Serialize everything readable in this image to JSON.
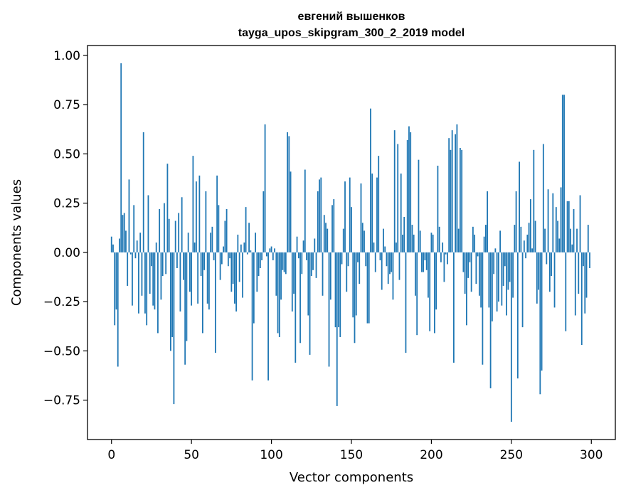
{
  "chart_data": {
    "type": "bar",
    "title_line1": "евгений вышенков",
    "title_line2": "tayga_upos_skipgram_300_2_2019 model",
    "xlabel": "Vector components",
    "ylabel": "Components values",
    "xlim": [
      -15,
      315
    ],
    "ylim": [
      -0.95,
      1.05
    ],
    "xticks": [
      0,
      50,
      100,
      150,
      200,
      250,
      300
    ],
    "yticks": [
      -0.75,
      -0.5,
      -0.25,
      0.0,
      0.25,
      0.5,
      0.75,
      1.0
    ],
    "xtick_labels": [
      "0",
      "50",
      "100",
      "150",
      "200",
      "250",
      "300"
    ],
    "ytick_labels": [
      "−0.75",
      "−0.50",
      "−0.25",
      "0.00",
      "0.25",
      "0.50",
      "0.75",
      "1.00"
    ],
    "bar_color": "#1f77b4",
    "grid": false,
    "values": [
      0.08,
      0.04,
      -0.37,
      -0.29,
      -0.58,
      0.07,
      0.96,
      0.19,
      0.2,
      0.11,
      -0.17,
      0.37,
      -0.01,
      -0.27,
      0.24,
      -0.03,
      0.06,
      -0.31,
      0.1,
      -0.22,
      0.61,
      -0.31,
      -0.37,
      0.29,
      -0.21,
      -0.07,
      -0.27,
      -0.29,
      0.05,
      -0.41,
      0.22,
      -0.24,
      -0.12,
      0.25,
      -0.11,
      0.45,
      0.17,
      -0.5,
      -0.43,
      -0.77,
      0.16,
      -0.08,
      0.2,
      -0.3,
      0.28,
      -0.14,
      -0.57,
      -0.45,
      0.1,
      -0.2,
      -0.27,
      0.49,
      0.05,
      0.36,
      -0.26,
      0.39,
      -0.12,
      -0.41,
      -0.09,
      0.31,
      -0.26,
      -0.29,
      0.1,
      0.13,
      -0.04,
      -0.51,
      0.39,
      0.24,
      -0.14,
      -0.06,
      0.03,
      0.16,
      0.22,
      -0.07,
      -0.03,
      -0.2,
      -0.16,
      -0.26,
      -0.3,
      0.09,
      -0.15,
      0.04,
      -0.23,
      0.05,
      0.23,
      -0.01,
      0.15,
      0.01,
      -0.65,
      -0.36,
      0.1,
      -0.2,
      -0.12,
      -0.08,
      -0.04,
      0.31,
      0.65,
      -0.02,
      -0.65,
      0.02,
      0.03,
      -0.04,
      0.02,
      -0.22,
      -0.41,
      -0.43,
      -0.24,
      -0.09,
      -0.1,
      -0.11,
      0.61,
      0.59,
      0.41,
      -0.3,
      -0.21,
      -0.56,
      0.08,
      -0.03,
      -0.46,
      -0.11,
      0.06,
      0.42,
      -0.04,
      -0.32,
      -0.52,
      -0.12,
      -0.09,
      0.07,
      -0.13,
      0.31,
      0.37,
      0.38,
      -0.22,
      0.19,
      0.15,
      0.12,
      -0.58,
      -0.24,
      0.24,
      0.27,
      -0.38,
      -0.78,
      -0.38,
      -0.43,
      -0.06,
      0.12,
      0.36,
      -0.2,
      -0.07,
      0.38,
      0.23,
      -0.33,
      -0.46,
      -0.32,
      -0.05,
      -0.16,
      0.35,
      0.15,
      0.11,
      -0.07,
      -0.36,
      -0.36,
      0.73,
      0.4,
      0.05,
      -0.1,
      0.38,
      0.49,
      -0.04,
      -0.19,
      0.12,
      0.03,
      -0.07,
      -0.16,
      -0.11,
      -0.1,
      -0.24,
      0.62,
      0.05,
      0.55,
      -0.14,
      0.4,
      0.09,
      0.18,
      -0.51,
      0.57,
      0.64,
      0.61,
      0.14,
      0.09,
      -0.22,
      -0.42,
      0.47,
      0.11,
      -0.1,
      -0.1,
      -0.04,
      -0.09,
      -0.23,
      -0.4,
      0.1,
      0.09,
      -0.41,
      -0.29,
      0.44,
      0.13,
      -0.05,
      0.05,
      -0.15,
      -0.01,
      -0.06,
      0.58,
      0.52,
      0.62,
      -0.56,
      0.6,
      0.65,
      0.12,
      0.53,
      0.52,
      -0.1,
      -0.21,
      -0.37,
      -0.13,
      -0.05,
      -0.2,
      0.13,
      0.09,
      -0.16,
      -0.02,
      -0.22,
      -0.28,
      -0.57,
      0.08,
      0.14,
      0.31,
      -0.28,
      -0.69,
      -0.35,
      -0.11,
      0.02,
      -0.3,
      -0.25,
      0.11,
      -0.27,
      -0.17,
      -0.07,
      -0.32,
      -0.19,
      -0.15,
      -0.86,
      -0.23,
      0.14,
      0.31,
      -0.64,
      0.46,
      0.13,
      -0.38,
      0.06,
      -0.03,
      0.09,
      0.15,
      0.27,
      0.02,
      0.52,
      0.16,
      -0.26,
      -0.19,
      -0.72,
      -0.6,
      0.55,
      0.12,
      -0.06,
      0.32,
      -0.2,
      -0.12,
      0.3,
      -0.28,
      0.23,
      0.16,
      0.07,
      0.33,
      0.8,
      0.8,
      -0.4,
      0.26,
      0.26,
      0.12,
      0.04,
      0.22,
      -0.32,
      0.12,
      -0.21,
      0.29,
      -0.47,
      -0.07,
      -0.31,
      -0.23,
      0.14,
      -0.08
    ]
  }
}
